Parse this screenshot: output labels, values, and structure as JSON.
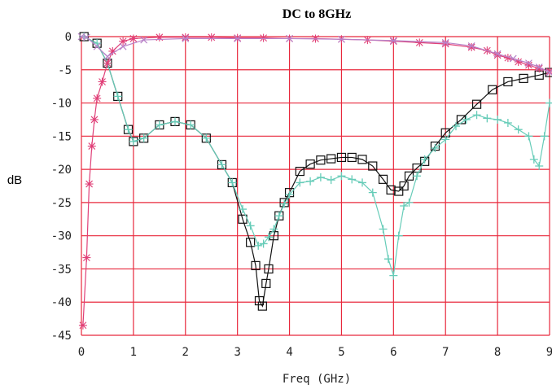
{
  "chart_data": {
    "type": "line",
    "title": "DC to 8GHz",
    "xlabel": "Freq (GHz)",
    "ylabel": "dB",
    "xlim": [
      0,
      9
    ],
    "ylim": [
      -45,
      0
    ],
    "xticks": [
      0,
      1,
      2,
      3,
      4,
      5,
      6,
      7,
      8,
      9
    ],
    "yticks": [
      0,
      -5,
      -10,
      -15,
      -20,
      -25,
      -30,
      -35,
      -40,
      -45
    ],
    "xtick_labels": [
      "0",
      "1",
      "2",
      "3",
      "4",
      "5",
      "6",
      "7",
      "8",
      "9"
    ],
    "ytick_labels": [
      "0",
      "-5",
      "-10",
      "-15",
      "-20",
      "-25",
      "-30",
      "-35",
      "-40",
      "-45"
    ],
    "grid": true,
    "grid_color": "#e8283c",
    "series": [
      {
        "marker": "square",
        "color": "#111111",
        "x": [
          0.05,
          0.3,
          0.5,
          0.7,
          0.9,
          1.0,
          1.2,
          1.5,
          1.8,
          2.1,
          2.4,
          2.7,
          2.9,
          3.1,
          3.25,
          3.35,
          3.42,
          3.48,
          3.55,
          3.6,
          3.7,
          3.8,
          3.9,
          4.0,
          4.2,
          4.4,
          4.6,
          4.8,
          5.0,
          5.2,
          5.4,
          5.6,
          5.8,
          5.95,
          6.1,
          6.2,
          6.3,
          6.45,
          6.6,
          6.8,
          7.0,
          7.3,
          7.6,
          7.9,
          8.2,
          8.5,
          8.8,
          9.0
        ],
        "y": [
          0,
          -1,
          -4,
          -9,
          -14,
          -15.8,
          -15.3,
          -13.3,
          -12.8,
          -13.3,
          -15.3,
          -19.3,
          -22,
          -27.5,
          -31,
          -34.5,
          -39.8,
          -40.6,
          -37.2,
          -35,
          -30,
          -27,
          -25,
          -23.5,
          -20.3,
          -19.2,
          -18.6,
          -18.4,
          -18.2,
          -18.2,
          -18.5,
          -19.5,
          -21.5,
          -23.1,
          -23.3,
          -22.5,
          -21,
          -19.8,
          -18.8,
          -16.5,
          -14.5,
          -12.5,
          -10.2,
          -8,
          -6.8,
          -6.3,
          -5.8,
          -5.4
        ]
      },
      {
        "marker": "plus",
        "color": "#66ccb8",
        "x": [
          0.05,
          0.3,
          0.5,
          0.7,
          0.9,
          1.0,
          1.2,
          1.5,
          1.8,
          2.1,
          2.4,
          2.7,
          2.9,
          3.1,
          3.25,
          3.4,
          3.5,
          3.6,
          3.7,
          3.8,
          3.9,
          4.0,
          4.2,
          4.4,
          4.6,
          4.8,
          5.0,
          5.2,
          5.4,
          5.6,
          5.8,
          5.9,
          6.0,
          6.1,
          6.2,
          6.3,
          6.45,
          6.6,
          6.8,
          7.0,
          7.2,
          7.4,
          7.6,
          7.8,
          8.0,
          8.2,
          8.4,
          8.6,
          8.7,
          8.8,
          8.9,
          9.0
        ],
        "y": [
          0,
          -1,
          -4,
          -9,
          -14,
          -15.8,
          -15.3,
          -13.3,
          -12.8,
          -13.3,
          -15.3,
          -19.3,
          -22,
          -26,
          -28.5,
          -31.5,
          -31.2,
          -30.2,
          -29,
          -27,
          -25.2,
          -23.8,
          -22,
          -21.8,
          -21.2,
          -21.6,
          -21,
          -21.5,
          -22,
          -23.5,
          -29,
          -33.5,
          -36,
          -30,
          -25.5,
          -25,
          -21,
          -18.5,
          -16.8,
          -15.5,
          -13.5,
          -12.5,
          -11.8,
          -12.3,
          -12.5,
          -13,
          -14,
          -15,
          -18.5,
          -19.5,
          -15,
          -10
        ]
      },
      {
        "marker": "star",
        "color": "#e04078",
        "x": [
          0.03,
          0.1,
          0.15,
          0.2,
          0.25,
          0.3,
          0.4,
          0.5,
          0.6,
          0.8,
          1.0,
          1.5,
          2.0,
          2.5,
          3.0,
          3.5,
          4.0,
          4.5,
          5.0,
          5.5,
          6.0,
          6.5,
          7.0,
          7.5,
          7.8,
          8.0,
          8.2,
          8.4,
          8.6,
          8.8,
          9.0
        ],
        "y": [
          -43.5,
          -33.3,
          -22.2,
          -16.5,
          -12.5,
          -9.3,
          -6.8,
          -4,
          -2.2,
          -0.7,
          -0.3,
          -0.1,
          -0.1,
          -0.1,
          -0.2,
          -0.2,
          -0.3,
          -0.3,
          -0.4,
          -0.5,
          -0.7,
          -0.9,
          -1.1,
          -1.6,
          -2.1,
          -2.8,
          -3.2,
          -3.8,
          -4.3,
          -4.8,
          -5.2
        ]
      },
      {
        "marker": "cross",
        "color": "#b882c8",
        "x": [
          0.0,
          0.1,
          0.3,
          0.5,
          0.8,
          1.2,
          2.0,
          3.0,
          4.0,
          5.0,
          6.0,
          7.0,
          7.5,
          8.0,
          8.3,
          8.6,
          8.8,
          9.0
        ],
        "y": [
          0,
          -0.1,
          -1.5,
          -3,
          -1.5,
          -0.5,
          -0.3,
          -0.3,
          -0.3,
          -0.4,
          -0.6,
          -0.9,
          -1.4,
          -2.6,
          -3.3,
          -4,
          -4.6,
          -5.4
        ]
      }
    ]
  }
}
